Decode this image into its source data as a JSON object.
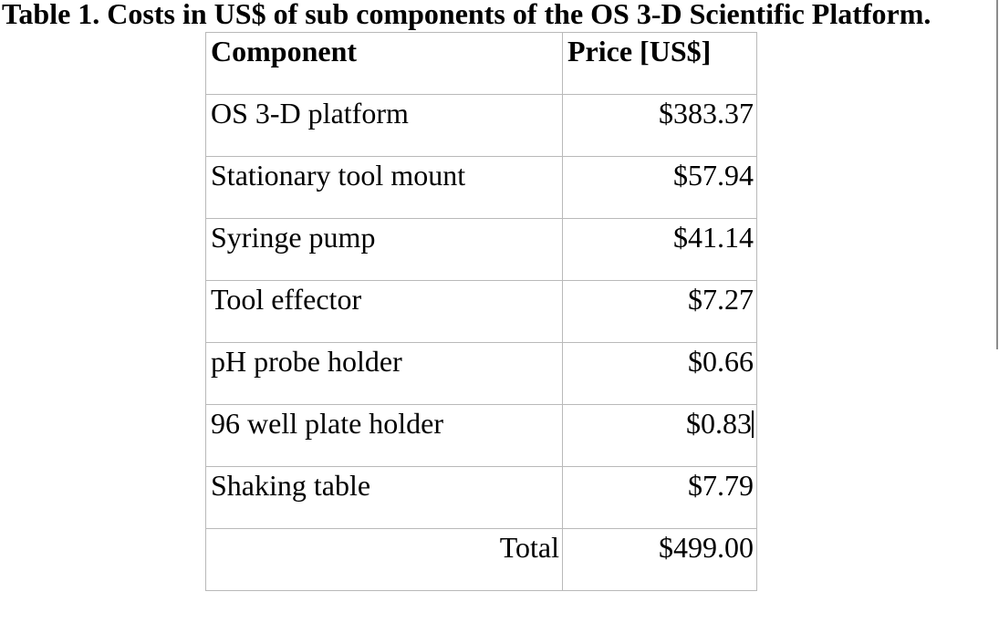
{
  "caption": "Table 1. Costs in US$ of sub components of the OS 3-D Scientific Platform.",
  "table": {
    "headers": [
      "Component",
      "Price [US$]"
    ],
    "rows": [
      {
        "component": "OS 3-D platform",
        "price": "$383.37"
      },
      {
        "component": "Stationary tool mount",
        "price": "$57.94"
      },
      {
        "component": "Syringe pump",
        "price": "$41.14"
      },
      {
        "component": "Tool effector",
        "price": "$7.27"
      },
      {
        "component": "pH probe holder",
        "price": "$0.66"
      },
      {
        "component": "96 well plate holder",
        "price": "$0.83"
      },
      {
        "component": "Shaking table",
        "price": "$7.79"
      }
    ],
    "footer": {
      "label": "Total",
      "value": "$499.00"
    }
  },
  "colors": {
    "background": "#ffffff",
    "text": "#000000",
    "table_border": "#b9b9b9",
    "page_edge_line": "#8c8c8c"
  }
}
